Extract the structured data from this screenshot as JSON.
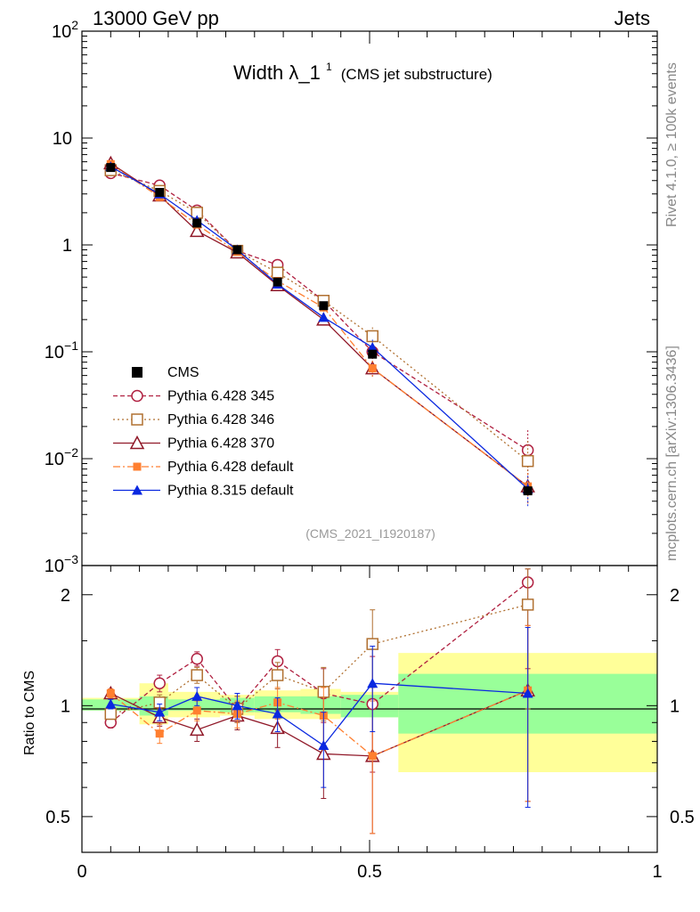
{
  "header": {
    "energy_label": "13000 GeV pp",
    "process_label": "Jets",
    "rivet_label": "Rivet 4.1.0, ≥ 100k events",
    "mcplots_label": "mcplots.cern.ch [arXiv:1306.3436]",
    "analysis_id": "(CMS_2021_I1920187)"
  },
  "chart_data": {
    "type": "line",
    "title": "Width λ_1",
    "title_sup": "1",
    "subtitle": "(CMS jet substructure)",
    "xlabel": "",
    "ylabel_main": "",
    "ylabel_ratio": "Ratio to CMS",
    "xlim": [
      0,
      1
    ],
    "ylim_main": [
      0.001,
      100
    ],
    "ylim_ratio": [
      0.4,
      2.4
    ],
    "x_ticks": [
      "0",
      "0.5",
      "1"
    ],
    "y_ticks_main": [
      {
        "v": 0.001,
        "base": "10",
        "exp": "−3"
      },
      {
        "v": 0.01,
        "base": "10",
        "exp": "−2"
      },
      {
        "v": 0.1,
        "base": "10",
        "exp": "−1"
      },
      {
        "v": 1,
        "base": "1",
        "exp": ""
      },
      {
        "v": 10,
        "base": "10",
        "exp": ""
      },
      {
        "v": 100,
        "base": "10",
        "exp": "2"
      }
    ],
    "y_ticks_ratio": [
      {
        "v": 0.5,
        "label": "0.5"
      },
      {
        "v": 1,
        "label": "1"
      },
      {
        "v": 2,
        "label": "2"
      }
    ],
    "bin_edges": [
      0,
      0.1,
      0.15,
      0.24,
      0.3,
      0.38,
      0.45,
      0.55,
      1.0
    ],
    "x": [
      0.05,
      0.135,
      0.2,
      0.27,
      0.34,
      0.42,
      0.505,
      0.775
    ],
    "cms": {
      "name": "CMS",
      "values": [
        5.3,
        3.1,
        1.6,
        0.9,
        0.45,
        0.27,
        0.095,
        0.005
      ],
      "band_inner": [
        [
          0.97,
          1.04
        ],
        [
          0.94,
          1.06
        ],
        [
          0.97,
          1.04
        ],
        [
          0.96,
          1.05
        ],
        [
          0.96,
          1.06
        ],
        [
          0.95,
          1.06
        ],
        [
          0.93,
          1.07
        ],
        [
          0.84,
          1.22
        ]
      ],
      "band_outer": [
        [
          0.97,
          1.05
        ],
        [
          0.89,
          1.15
        ],
        [
          0.93,
          1.09
        ],
        [
          0.94,
          1.07
        ],
        [
          0.92,
          1.1
        ],
        [
          0.92,
          1.11
        ],
        [
          0.93,
          1.09
        ],
        [
          0.66,
          1.39
        ]
      ]
    },
    "series": [
      {
        "name": "Pythia 6.428 345",
        "color": "#b02040",
        "marker": "circle",
        "dash": "5,3",
        "values": [
          4.7,
          3.6,
          2.1,
          0.88,
          0.65,
          0.3,
          0.1,
          0.012
        ],
        "ratio": [
          0.9,
          1.15,
          1.34,
          0.98,
          1.32,
          1.08,
          1.01,
          2.16
        ],
        "ratio_err": [
          0.03,
          0.06,
          0.06,
          0.08,
          0.1,
          0.18,
          0.35,
          0.9
        ]
      },
      {
        "name": "Pythia 6.428 346",
        "color": "#b07030",
        "marker": "square",
        "dash": "2,3",
        "values": [
          5.0,
          3.2,
          2.0,
          0.88,
          0.55,
          0.3,
          0.14,
          0.0095
        ],
        "ratio": [
          0.95,
          1.02,
          1.21,
          0.98,
          1.21,
          1.09,
          1.47,
          1.88
        ],
        "ratio_err": [
          0.03,
          0.05,
          0.06,
          0.08,
          0.1,
          0.18,
          0.35,
          0.9
        ]
      },
      {
        "name": "Pythia 6.428 370",
        "color": "#901828",
        "marker": "triangle-open",
        "dash": "",
        "values": [
          5.8,
          2.9,
          1.35,
          0.85,
          0.42,
          0.2,
          0.07,
          0.0055
        ],
        "ratio": [
          1.08,
          0.93,
          0.86,
          0.94,
          0.87,
          0.74,
          0.73,
          1.1
        ],
        "ratio_err": [
          0.03,
          0.05,
          0.06,
          0.08,
          0.1,
          0.18,
          0.3,
          0.55
        ]
      },
      {
        "name": "Pythia 6.428 default",
        "color": "#ff7f30",
        "marker": "square-filled",
        "dash": "8,3,2,3",
        "values": [
          5.7,
          2.8,
          1.55,
          0.86,
          0.46,
          0.26,
          0.07,
          0.0055
        ],
        "ratio": [
          1.08,
          0.84,
          0.97,
          0.95,
          1.02,
          0.94,
          0.73,
          1.1
        ],
        "ratio_err": [
          0.03,
          0.05,
          0.06,
          0.08,
          0.1,
          0.18,
          0.3,
          0.55
        ]
      },
      {
        "name": "Pythia 8.315 default",
        "color": "#0a28e0",
        "marker": "triangle-filled",
        "dash": "",
        "values": [
          5.4,
          3.0,
          1.7,
          0.9,
          0.43,
          0.21,
          0.11,
          0.0052
        ],
        "ratio": [
          1.01,
          0.96,
          1.06,
          1.0,
          0.95,
          0.78,
          1.15,
          1.08
        ],
        "ratio_err": [
          0.03,
          0.05,
          0.06,
          0.08,
          0.1,
          0.18,
          0.3,
          0.55
        ]
      }
    ]
  }
}
